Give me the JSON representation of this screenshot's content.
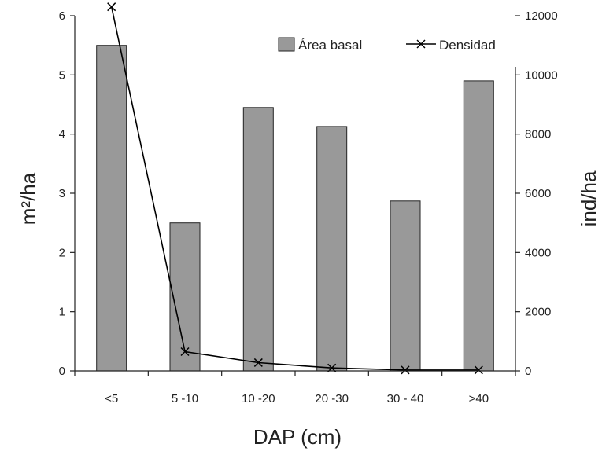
{
  "chart_data": {
    "type": "bar",
    "categories": [
      "<5",
      "5 -10",
      "10 -20",
      "20 -30",
      "30 - 40",
      ">40"
    ],
    "series": [
      {
        "name": "Área basal",
        "kind": "bar",
        "axis": "left",
        "values": [
          5.5,
          2.5,
          4.45,
          4.13,
          2.87,
          4.9
        ],
        "color": "#999999"
      },
      {
        "name": "Densidad",
        "kind": "line",
        "marker": "x",
        "axis": "right",
        "values": [
          12300,
          650,
          280,
          100,
          30,
          30
        ],
        "color": "#000000"
      }
    ],
    "xlabel": "DAP (cm)",
    "ylabel_left": "m²/ha",
    "ylabel_right": "ind/ha",
    "ylim_left": [
      0,
      6
    ],
    "yticks_left": [
      "0",
      "1",
      "2",
      "3",
      "4",
      "5",
      "6"
    ],
    "ylim_right": [
      0,
      12000
    ],
    "yticks_right": [
      "0",
      "2000",
      "4000",
      "6000",
      "8000",
      "10000",
      "12000"
    ],
    "grid": false,
    "legend_position": "top-right"
  }
}
